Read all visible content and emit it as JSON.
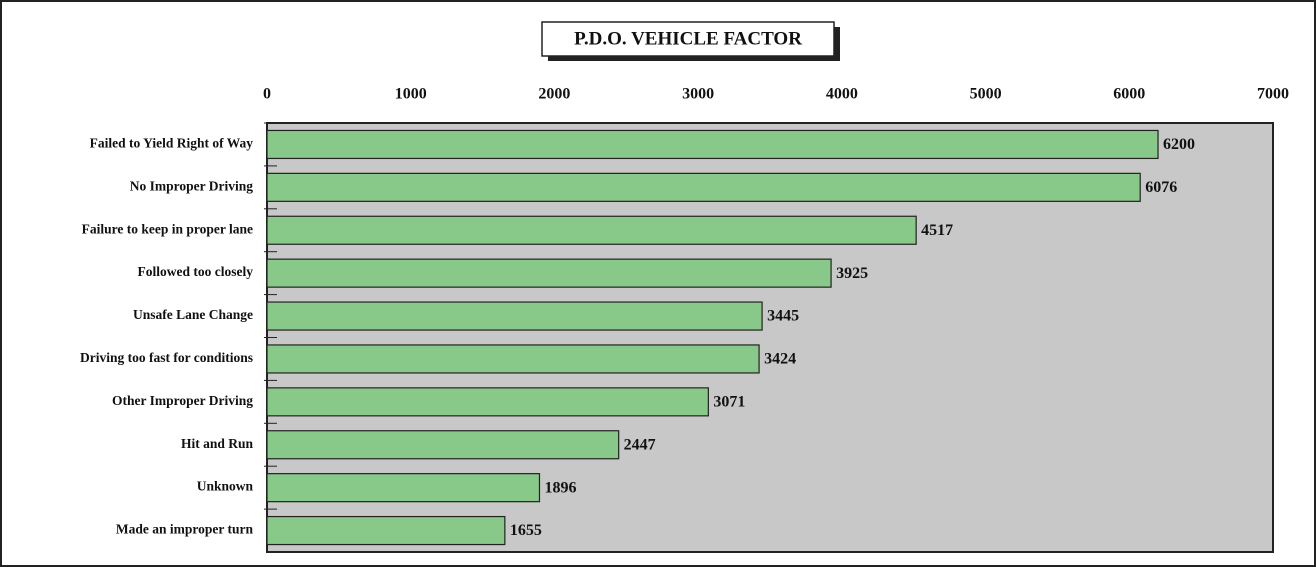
{
  "chart_data": {
    "type": "bar",
    "orientation": "horizontal",
    "title": "P.D.O. VEHICLE FACTOR",
    "categories": [
      "Failed to Yield Right of Way",
      "No Improper Driving",
      "Failure to keep in proper lane",
      "Followed too closely",
      "Unsafe Lane Change",
      "Driving too fast for conditions",
      "Other Improper Driving",
      "Hit and Run",
      "Unknown",
      "Made an improper turn"
    ],
    "values": [
      6200,
      6076,
      4517,
      3925,
      3445,
      3424,
      3071,
      2447,
      1896,
      1655
    ],
    "color": "#88c888",
    "plot_background": "#c8c8c8",
    "xlim": [
      0,
      7000
    ],
    "xticks": [
      0,
      1000,
      2000,
      3000,
      4000,
      5000,
      6000,
      7000
    ]
  }
}
